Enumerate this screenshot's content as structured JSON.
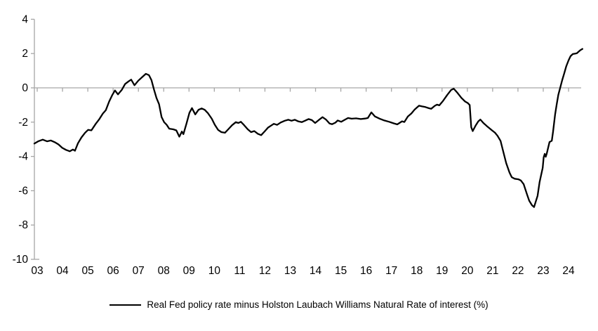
{
  "legend": {
    "series_label": "Real Fed policy rate minus Holston Laubach Williams Natural Rate of interest (%)"
  },
  "colors": {
    "series_line": "#000000",
    "axis_line": "#a6a6a6",
    "label_text": "#000000",
    "background": "#ffffff"
  },
  "chart_data": {
    "type": "line",
    "title": "",
    "xlabel": "",
    "ylabel": "",
    "x_unit": "year (2003 - mid 2024)",
    "ylim": [
      -10,
      4
    ],
    "grid": false,
    "legend_position": "bottom-center",
    "zero_line": true,
    "y_ticks": [
      4,
      2,
      0,
      -2,
      -4,
      -6,
      -8,
      -10
    ],
    "x_tick_labels": [
      "03",
      "04",
      "05",
      "06",
      "07",
      "08",
      "09",
      "10",
      "11",
      "12",
      "13",
      "14",
      "15",
      "16",
      "17",
      "18",
      "19",
      "20",
      "21",
      "22",
      "23",
      "24"
    ],
    "series": [
      {
        "name": "Real Fed policy rate minus Holston Laubach Williams Natural Rate of interest (%)",
        "points": [
          [
            0.0,
            -3.25
          ],
          [
            0.15,
            -3.12
          ],
          [
            0.33,
            -3.02
          ],
          [
            0.5,
            -3.12
          ],
          [
            0.65,
            -3.07
          ],
          [
            0.8,
            -3.17
          ],
          [
            0.95,
            -3.3
          ],
          [
            1.1,
            -3.5
          ],
          [
            1.25,
            -3.62
          ],
          [
            1.4,
            -3.7
          ],
          [
            1.52,
            -3.6
          ],
          [
            1.6,
            -3.67
          ],
          [
            1.72,
            -3.23
          ],
          [
            1.86,
            -2.89
          ],
          [
            2.0,
            -2.62
          ],
          [
            2.12,
            -2.45
          ],
          [
            2.25,
            -2.48
          ],
          [
            2.42,
            -2.1
          ],
          [
            2.55,
            -1.85
          ],
          [
            2.7,
            -1.5
          ],
          [
            2.82,
            -1.3
          ],
          [
            2.95,
            -0.8
          ],
          [
            3.08,
            -0.4
          ],
          [
            3.18,
            -0.15
          ],
          [
            3.3,
            -0.38
          ],
          [
            3.45,
            -0.12
          ],
          [
            3.58,
            0.22
          ],
          [
            3.72,
            0.38
          ],
          [
            3.82,
            0.48
          ],
          [
            3.95,
            0.15
          ],
          [
            4.1,
            0.42
          ],
          [
            4.25,
            0.62
          ],
          [
            4.4,
            0.82
          ],
          [
            4.52,
            0.74
          ],
          [
            4.62,
            0.45
          ],
          [
            4.72,
            -0.1
          ],
          [
            4.82,
            -0.6
          ],
          [
            4.92,
            -0.95
          ],
          [
            5.02,
            -1.7
          ],
          [
            5.12,
            -2.0
          ],
          [
            5.22,
            -2.15
          ],
          [
            5.32,
            -2.38
          ],
          [
            5.48,
            -2.42
          ],
          [
            5.6,
            -2.48
          ],
          [
            5.72,
            -2.85
          ],
          [
            5.82,
            -2.55
          ],
          [
            5.88,
            -2.7
          ],
          [
            6.0,
            -2.1
          ],
          [
            6.12,
            -1.45
          ],
          [
            6.22,
            -1.18
          ],
          [
            6.35,
            -1.55
          ],
          [
            6.48,
            -1.28
          ],
          [
            6.6,
            -1.2
          ],
          [
            6.72,
            -1.28
          ],
          [
            6.85,
            -1.48
          ],
          [
            7.0,
            -1.8
          ],
          [
            7.12,
            -2.15
          ],
          [
            7.25,
            -2.45
          ],
          [
            7.38,
            -2.58
          ],
          [
            7.52,
            -2.62
          ],
          [
            7.65,
            -2.42
          ],
          [
            7.8,
            -2.18
          ],
          [
            7.95,
            -2.0
          ],
          [
            8.05,
            -2.05
          ],
          [
            8.15,
            -1.98
          ],
          [
            8.28,
            -2.18
          ],
          [
            8.42,
            -2.42
          ],
          [
            8.55,
            -2.58
          ],
          [
            8.68,
            -2.52
          ],
          [
            8.82,
            -2.68
          ],
          [
            8.95,
            -2.76
          ],
          [
            9.1,
            -2.52
          ],
          [
            9.22,
            -2.32
          ],
          [
            9.32,
            -2.22
          ],
          [
            9.45,
            -2.1
          ],
          [
            9.58,
            -2.16
          ],
          [
            9.72,
            -2.02
          ],
          [
            9.88,
            -1.92
          ],
          [
            10.02,
            -1.86
          ],
          [
            10.15,
            -1.92
          ],
          [
            10.28,
            -1.86
          ],
          [
            10.42,
            -1.96
          ],
          [
            10.55,
            -2.0
          ],
          [
            10.68,
            -1.92
          ],
          [
            10.82,
            -1.82
          ],
          [
            10.95,
            -1.88
          ],
          [
            11.08,
            -2.05
          ],
          [
            11.23,
            -1.87
          ],
          [
            11.37,
            -1.71
          ],
          [
            11.5,
            -1.84
          ],
          [
            11.65,
            -2.08
          ],
          [
            11.75,
            -2.12
          ],
          [
            11.88,
            -2.03
          ],
          [
            11.97,
            -1.9
          ],
          [
            12.11,
            -1.98
          ],
          [
            12.24,
            -1.87
          ],
          [
            12.38,
            -1.76
          ],
          [
            12.52,
            -1.8
          ],
          [
            12.7,
            -1.78
          ],
          [
            12.88,
            -1.82
          ],
          [
            13.05,
            -1.79
          ],
          [
            13.16,
            -1.76
          ],
          [
            13.3,
            -1.43
          ],
          [
            13.44,
            -1.67
          ],
          [
            13.63,
            -1.8
          ],
          [
            13.81,
            -1.9
          ],
          [
            14.0,
            -1.98
          ],
          [
            14.18,
            -2.07
          ],
          [
            14.32,
            -2.13
          ],
          [
            14.51,
            -1.95
          ],
          [
            14.6,
            -1.99
          ],
          [
            14.74,
            -1.67
          ],
          [
            14.88,
            -1.49
          ],
          [
            15.01,
            -1.26
          ],
          [
            15.18,
            -1.04
          ],
          [
            15.3,
            -1.08
          ],
          [
            15.43,
            -1.12
          ],
          [
            15.57,
            -1.19
          ],
          [
            15.66,
            -1.22
          ],
          [
            15.8,
            -1.05
          ],
          [
            15.89,
            -0.98
          ],
          [
            15.98,
            -1.02
          ],
          [
            16.12,
            -0.78
          ],
          [
            16.3,
            -0.4
          ],
          [
            16.45,
            -0.12
          ],
          [
            16.55,
            -0.05
          ],
          [
            16.7,
            -0.3
          ],
          [
            16.85,
            -0.58
          ],
          [
            17.0,
            -0.8
          ],
          [
            17.1,
            -0.88
          ],
          [
            17.18,
            -1.0
          ],
          [
            17.24,
            -2.3
          ],
          [
            17.3,
            -2.52
          ],
          [
            17.42,
            -2.18
          ],
          [
            17.52,
            -1.95
          ],
          [
            17.6,
            -1.85
          ],
          [
            17.72,
            -2.05
          ],
          [
            17.85,
            -2.22
          ],
          [
            17.98,
            -2.38
          ],
          [
            18.06,
            -2.48
          ],
          [
            18.18,
            -2.62
          ],
          [
            18.28,
            -2.8
          ],
          [
            18.4,
            -3.1
          ],
          [
            18.48,
            -3.57
          ],
          [
            18.62,
            -4.39
          ],
          [
            18.75,
            -4.94
          ],
          [
            18.84,
            -5.21
          ],
          [
            18.95,
            -5.3
          ],
          [
            19.1,
            -5.33
          ],
          [
            19.2,
            -5.4
          ],
          [
            19.31,
            -5.62
          ],
          [
            19.45,
            -6.24
          ],
          [
            19.53,
            -6.58
          ],
          [
            19.64,
            -6.85
          ],
          [
            19.72,
            -6.95
          ],
          [
            19.86,
            -6.3
          ],
          [
            19.94,
            -5.49
          ],
          [
            20.06,
            -4.67
          ],
          [
            20.1,
            -4.05
          ],
          [
            20.14,
            -3.85
          ],
          [
            20.18,
            -4.02
          ],
          [
            20.22,
            -3.85
          ],
          [
            20.33,
            -3.16
          ],
          [
            20.42,
            -3.08
          ],
          [
            20.47,
            -2.55
          ],
          [
            20.55,
            -1.55
          ],
          [
            20.61,
            -1.0
          ],
          [
            20.68,
            -0.4
          ],
          [
            20.75,
            0.0
          ],
          [
            20.83,
            0.45
          ],
          [
            20.91,
            0.85
          ],
          [
            20.99,
            1.25
          ],
          [
            21.08,
            1.6
          ],
          [
            21.16,
            1.85
          ],
          [
            21.25,
            1.97
          ],
          [
            21.35,
            2.0
          ],
          [
            21.41,
            2.02
          ],
          [
            21.47,
            2.1
          ],
          [
            21.55,
            2.2
          ],
          [
            21.63,
            2.27
          ]
        ]
      }
    ]
  }
}
